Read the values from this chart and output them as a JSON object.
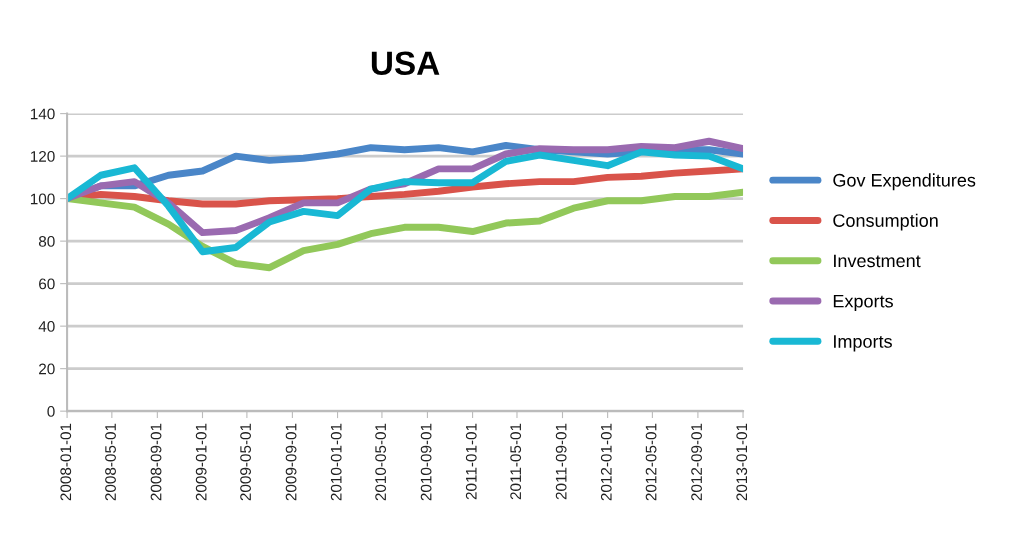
{
  "chart_data": {
    "type": "line",
    "title": "USA",
    "x": [
      "2008-01-01",
      "2008-04-01",
      "2008-07-01",
      "2008-10-01",
      "2009-01-01",
      "2009-04-01",
      "2009-07-01",
      "2009-10-01",
      "2010-01-01",
      "2010-04-01",
      "2010-07-01",
      "2010-10-01",
      "2011-01-01",
      "2011-04-01",
      "2011-07-01",
      "2011-10-01",
      "2012-01-01",
      "2012-04-01",
      "2012-07-01",
      "2012-10-01",
      "2013-01-01"
    ],
    "series": [
      {
        "name": "Gov Expenditures",
        "color": "#4a86c8",
        "values": [
          100,
          106,
          106,
          111,
          113,
          120,
          118,
          119,
          121,
          124,
          123,
          124,
          122,
          125,
          123,
          122,
          121,
          122,
          123,
          123,
          121
        ]
      },
      {
        "name": "Consumption",
        "color": "#d9534a",
        "values": [
          100,
          102,
          101,
          99,
          97.5,
          97.5,
          99,
          99.5,
          100,
          101,
          102,
          103.5,
          105.5,
          107,
          108,
          108,
          110,
          110.5,
          112,
          113,
          114
        ]
      },
      {
        "name": "Investment",
        "color": "#92c85a",
        "values": [
          100,
          98,
          96,
          88,
          77.5,
          69.5,
          67.5,
          75.5,
          78.5,
          83.5,
          86.5,
          86.5,
          84.5,
          88.5,
          89.5,
          95.5,
          99,
          99,
          101,
          101,
          103
        ]
      },
      {
        "name": "Exports",
        "color": "#9a6ab0",
        "values": [
          100,
          106,
          108,
          98,
          84,
          85,
          91,
          98,
          98,
          104.5,
          107,
          114,
          114,
          121,
          123.5,
          123,
          123,
          124.5,
          124,
          127,
          123.5
        ]
      },
      {
        "name": "Imports",
        "color": "#19b8d4",
        "values": [
          100,
          111,
          114.5,
          96.5,
          75,
          77,
          89,
          94,
          92,
          104.5,
          108,
          107.5,
          107.5,
          117.5,
          120.5,
          118,
          115.5,
          122,
          120.5,
          120,
          114
        ]
      }
    ],
    "xlim": [
      "2008-01-01",
      "2013-01-01"
    ],
    "xticks": [
      "2008-01-01",
      "2008-05-01",
      "2008-09-01",
      "2009-01-01",
      "2009-05-01",
      "2009-09-01",
      "2010-01-01",
      "2010-05-01",
      "2010-09-01",
      "2011-01-01",
      "2011-05-01",
      "2011-09-01",
      "2012-01-01",
      "2012-05-01",
      "2012-09-01",
      "2013-01-01"
    ],
    "ylim": [
      0,
      140
    ],
    "yticks": [
      0,
      20,
      40,
      60,
      80,
      100,
      120,
      140
    ],
    "grid": "y",
    "legend": "right",
    "marker": "none",
    "line_style": "solid"
  }
}
